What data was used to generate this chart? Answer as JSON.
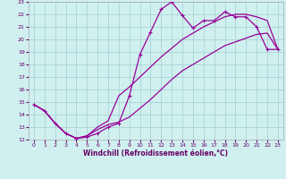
{
  "title": "",
  "xlabel": "Windchill (Refroidissement éolien,°C)",
  "xlim": [
    -0.5,
    23.5
  ],
  "ylim": [
    12,
    23
  ],
  "xticks": [
    0,
    1,
    2,
    3,
    4,
    5,
    6,
    7,
    8,
    9,
    10,
    11,
    12,
    13,
    14,
    15,
    16,
    17,
    18,
    19,
    20,
    21,
    22,
    23
  ],
  "yticks": [
    12,
    13,
    14,
    15,
    16,
    17,
    18,
    19,
    20,
    21,
    22,
    23
  ],
  "background_color": "#d0f0f0",
  "grid_color": "#b0d8d8",
  "line_color": "#990099",
  "line1_x": [
    0,
    1,
    2,
    3,
    4,
    5,
    6,
    7,
    8,
    9,
    10,
    11,
    12,
    13,
    14,
    15,
    16,
    17,
    18,
    19,
    20,
    21,
    22,
    23
  ],
  "line1_y": [
    14.8,
    14.3,
    13.3,
    12.5,
    12.1,
    12.2,
    12.5,
    13.0,
    13.3,
    15.5,
    18.8,
    20.6,
    22.4,
    23.0,
    21.9,
    20.9,
    21.5,
    21.5,
    22.2,
    21.8,
    21.8,
    21.0,
    19.2,
    19.2
  ],
  "line2_x": [
    0,
    1,
    2,
    3,
    4,
    5,
    6,
    7,
    8,
    9,
    10,
    11,
    12,
    13,
    14,
    15,
    16,
    17,
    18,
    19,
    20,
    21,
    22,
    23
  ],
  "line2_y": [
    14.8,
    14.3,
    13.3,
    12.5,
    12.1,
    12.3,
    13.0,
    13.5,
    15.5,
    16.2,
    17.0,
    17.8,
    18.6,
    19.3,
    20.0,
    20.5,
    21.0,
    21.4,
    21.8,
    22.0,
    22.0,
    21.8,
    21.5,
    19.2
  ],
  "line3_x": [
    0,
    1,
    2,
    3,
    4,
    5,
    6,
    7,
    8,
    9,
    10,
    11,
    12,
    13,
    14,
    15,
    16,
    17,
    18,
    19,
    20,
    21,
    22,
    23
  ],
  "line3_y": [
    14.8,
    14.3,
    13.3,
    12.5,
    12.1,
    12.3,
    12.8,
    13.2,
    13.4,
    13.8,
    14.5,
    15.2,
    16.0,
    16.8,
    17.5,
    18.0,
    18.5,
    19.0,
    19.5,
    19.8,
    20.1,
    20.4,
    20.5,
    19.2
  ]
}
